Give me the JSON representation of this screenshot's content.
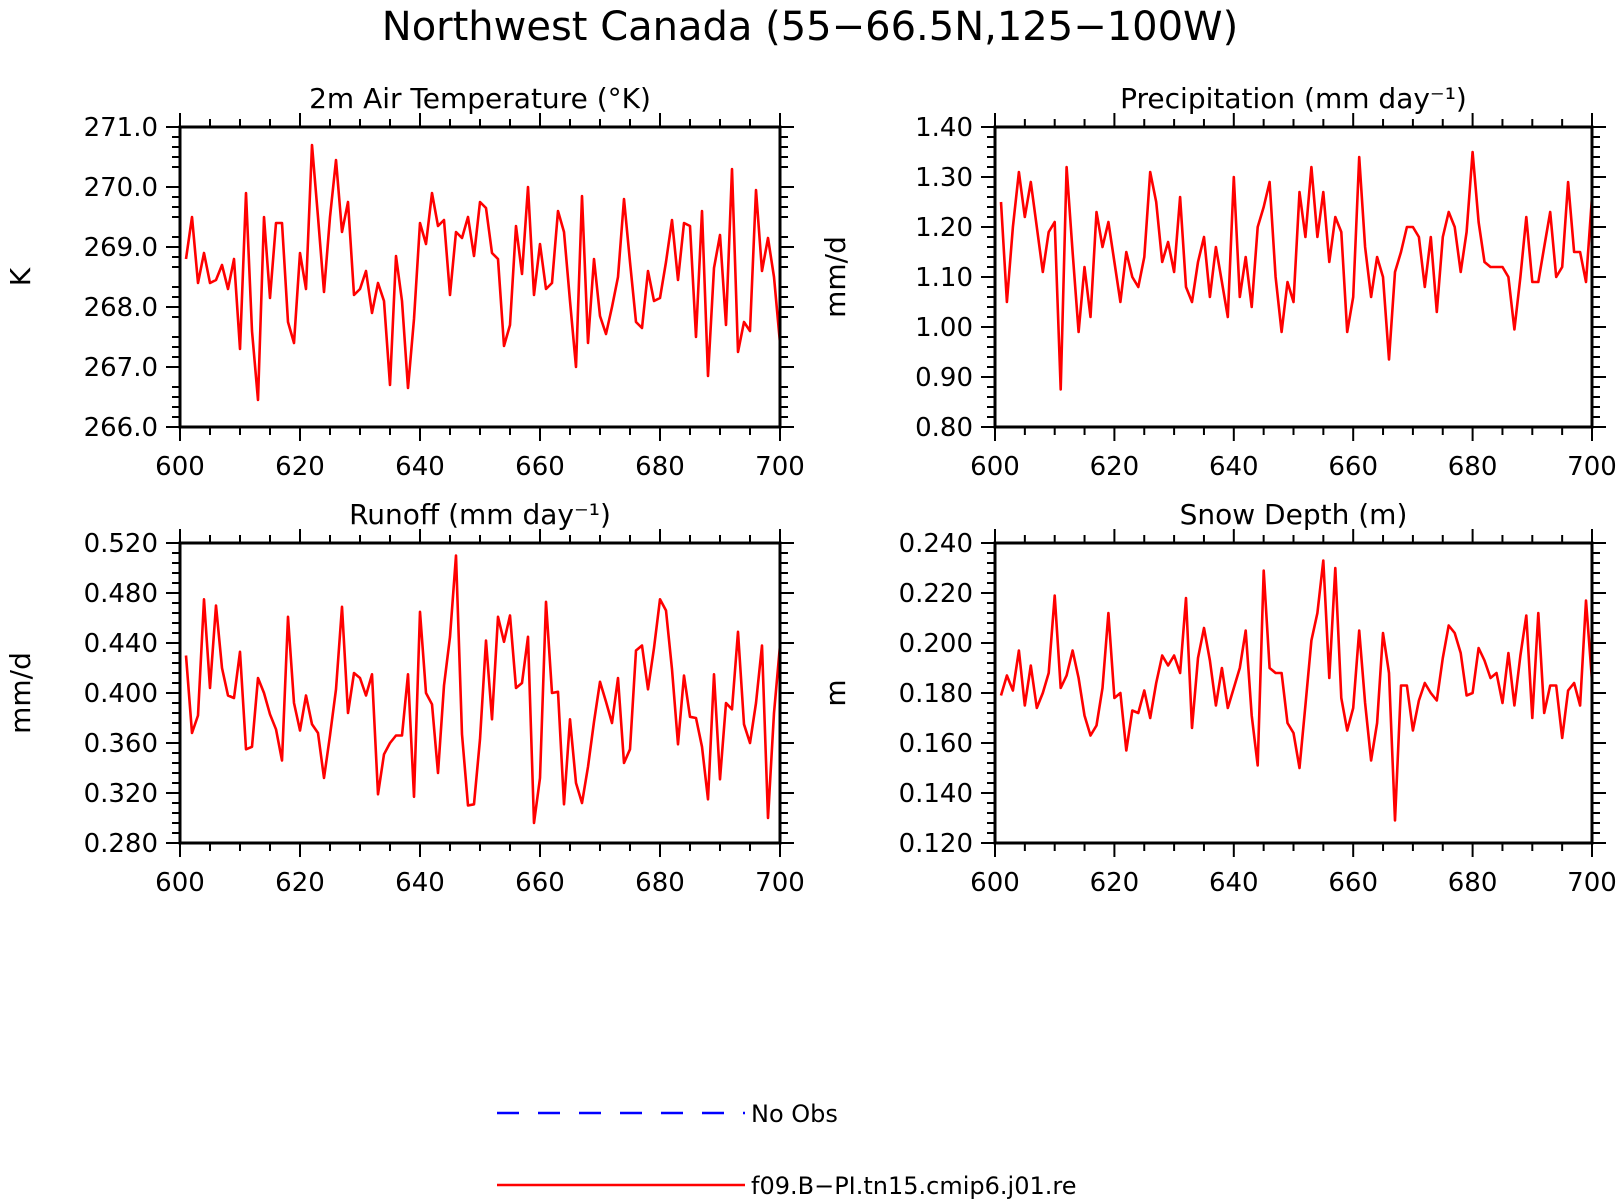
{
  "figure": {
    "title": "Northwest Canada (55−66.5N,125−100W)"
  },
  "legend": [
    {
      "label": "No Obs",
      "color": "#0000ff",
      "dashed": true
    },
    {
      "label": "f09.B−PI.tn15.cmip6.j01.re",
      "color": "#ff0000",
      "dashed": false
    }
  ],
  "chart_data": [
    {
      "type": "line",
      "title": "2m Air Temperature (°K)",
      "xlabel": "",
      "ylabel": "K",
      "xlim": [
        600,
        700
      ],
      "ylim": [
        266.0,
        271.0
      ],
      "xticks": [
        "600",
        "620",
        "640",
        "660",
        "680",
        "700"
      ],
      "yticks": [
        "266.0",
        "267.0",
        "268.0",
        "269.0",
        "270.0",
        "271.0"
      ],
      "x": [
        601,
        602,
        603,
        604,
        605,
        606,
        607,
        608,
        609,
        610,
        611,
        612,
        613,
        614,
        615,
        616,
        617,
        618,
        619,
        620,
        621,
        622,
        623,
        624,
        625,
        626,
        627,
        628,
        629,
        630,
        631,
        632,
        633,
        634,
        635,
        636,
        637,
        638,
        639,
        640,
        641,
        642,
        643,
        644,
        645,
        646,
        647,
        648,
        649,
        650,
        651,
        652,
        653,
        654,
        655,
        656,
        657,
        658,
        659,
        660,
        661,
        662,
        663,
        664,
        665,
        666,
        667,
        668,
        669,
        670,
        671,
        672,
        673,
        674,
        675,
        676,
        677,
        678,
        679,
        680,
        681,
        682,
        683,
        684,
        685,
        686,
        687,
        688,
        689,
        690,
        691,
        692,
        693,
        694,
        695,
        696,
        697,
        698,
        699,
        700
      ],
      "series": [
        {
          "color": "#ff0000",
          "values": [
            268.8,
            269.5,
            268.4,
            268.9,
            268.4,
            268.45,
            268.7,
            268.3,
            268.8,
            267.3,
            269.9,
            267.6,
            266.45,
            269.5,
            268.15,
            269.4,
            269.4,
            267.75,
            267.4,
            268.9,
            268.3,
            270.7,
            269.5,
            268.25,
            269.5,
            270.45,
            269.25,
            269.75,
            268.2,
            268.3,
            268.6,
            267.9,
            268.4,
            268.1,
            266.7,
            268.85,
            268.1,
            266.65,
            267.8,
            269.4,
            269.05,
            269.9,
            269.35,
            269.45,
            268.2,
            269.25,
            269.15,
            269.5,
            268.85,
            269.75,
            269.65,
            268.9,
            268.8,
            267.35,
            267.7,
            269.35,
            268.55,
            270.0,
            268.2,
            269.05,
            268.3,
            268.4,
            269.6,
            269.25,
            268.1,
            267.0,
            269.85,
            267.4,
            268.8,
            267.85,
            267.55,
            268.0,
            268.5,
            269.8,
            268.75,
            267.75,
            267.65,
            268.6,
            268.1,
            268.15,
            268.75,
            269.45,
            268.45,
            269.4,
            269.35,
            267.5,
            269.6,
            266.85,
            268.65,
            269.2,
            267.7,
            270.3,
            267.25,
            267.75,
            267.6,
            269.95,
            268.6,
            269.15,
            268.5,
            267.4
          ]
        }
      ]
    },
    {
      "type": "line",
      "title": "Precipitation (mm day⁻¹)",
      "xlabel": "",
      "ylabel": "mm/d",
      "xlim": [
        600,
        700
      ],
      "ylim": [
        0.8,
        1.4
      ],
      "xticks": [
        "600",
        "620",
        "640",
        "660",
        "680",
        "700"
      ],
      "yticks": [
        "0.80",
        "0.90",
        "1.00",
        "1.10",
        "1.20",
        "1.30",
        "1.40"
      ],
      "x": [
        601,
        602,
        603,
        604,
        605,
        606,
        607,
        608,
        609,
        610,
        611,
        612,
        613,
        614,
        615,
        616,
        617,
        618,
        619,
        620,
        621,
        622,
        623,
        624,
        625,
        626,
        627,
        628,
        629,
        630,
        631,
        632,
        633,
        634,
        635,
        636,
        637,
        638,
        639,
        640,
        641,
        642,
        643,
        644,
        645,
        646,
        647,
        648,
        649,
        650,
        651,
        652,
        653,
        654,
        655,
        656,
        657,
        658,
        659,
        660,
        661,
        662,
        663,
        664,
        665,
        666,
        667,
        668,
        669,
        670,
        671,
        672,
        673,
        674,
        675,
        676,
        677,
        678,
        679,
        680,
        681,
        682,
        683,
        684,
        685,
        686,
        687,
        688,
        689,
        690,
        691,
        692,
        693,
        694,
        695,
        696,
        697,
        698,
        699,
        700
      ],
      "series": [
        {
          "color": "#ff0000",
          "values": [
            1.25,
            1.05,
            1.2,
            1.31,
            1.22,
            1.29,
            1.2,
            1.11,
            1.19,
            1.21,
            0.875,
            1.32,
            1.15,
            0.99,
            1.12,
            1.02,
            1.23,
            1.16,
            1.21,
            1.13,
            1.05,
            1.15,
            1.1,
            1.08,
            1.14,
            1.31,
            1.25,
            1.13,
            1.17,
            1.11,
            1.26,
            1.08,
            1.05,
            1.13,
            1.18,
            1.06,
            1.16,
            1.09,
            1.02,
            1.3,
            1.06,
            1.14,
            1.04,
            1.2,
            1.24,
            1.29,
            1.1,
            0.99,
            1.09,
            1.05,
            1.27,
            1.18,
            1.32,
            1.18,
            1.27,
            1.13,
            1.22,
            1.19,
            0.99,
            1.06,
            1.34,
            1.16,
            1.06,
            1.14,
            1.1,
            0.935,
            1.11,
            1.15,
            1.2,
            1.2,
            1.18,
            1.08,
            1.18,
            1.03,
            1.18,
            1.23,
            1.2,
            1.11,
            1.19,
            1.35,
            1.21,
            1.13,
            1.12,
            1.12,
            1.12,
            1.1,
            0.995,
            1.1,
            1.22,
            1.09,
            1.09,
            1.16,
            1.23,
            1.1,
            1.12,
            1.29,
            1.15,
            1.15,
            1.09,
            1.26
          ]
        }
      ]
    },
    {
      "type": "line",
      "title": "Runoff (mm day⁻¹)",
      "xlabel": "",
      "ylabel": "mm/d",
      "xlim": [
        600,
        700
      ],
      "ylim": [
        0.28,
        0.52
      ],
      "xticks": [
        "600",
        "620",
        "640",
        "660",
        "680",
        "700"
      ],
      "yticks": [
        "0.280",
        "0.320",
        "0.360",
        "0.400",
        "0.440",
        "0.480",
        "0.520"
      ],
      "x": [
        601,
        602,
        603,
        604,
        605,
        606,
        607,
        608,
        609,
        610,
        611,
        612,
        613,
        614,
        615,
        616,
        617,
        618,
        619,
        620,
        621,
        622,
        623,
        624,
        625,
        626,
        627,
        628,
        629,
        630,
        631,
        632,
        633,
        634,
        635,
        636,
        637,
        638,
        639,
        640,
        641,
        642,
        643,
        644,
        645,
        646,
        647,
        648,
        649,
        650,
        651,
        652,
        653,
        654,
        655,
        656,
        657,
        658,
        659,
        660,
        661,
        662,
        663,
        664,
        665,
        666,
        667,
        668,
        669,
        670,
        671,
        672,
        673,
        674,
        675,
        676,
        677,
        678,
        679,
        680,
        681,
        682,
        683,
        684,
        685,
        686,
        687,
        688,
        689,
        690,
        691,
        692,
        693,
        694,
        695,
        696,
        697,
        698,
        699,
        700
      ],
      "series": [
        {
          "color": "#ff0000",
          "values": [
            0.43,
            0.368,
            0.382,
            0.475,
            0.404,
            0.47,
            0.42,
            0.398,
            0.396,
            0.433,
            0.355,
            0.357,
            0.412,
            0.4,
            0.383,
            0.371,
            0.346,
            0.461,
            0.392,
            0.37,
            0.398,
            0.375,
            0.368,
            0.332,
            0.366,
            0.403,
            0.469,
            0.384,
            0.416,
            0.412,
            0.398,
            0.415,
            0.319,
            0.351,
            0.36,
            0.366,
            0.366,
            0.415,
            0.317,
            0.465,
            0.4,
            0.391,
            0.336,
            0.406,
            0.445,
            0.51,
            0.367,
            0.31,
            0.311,
            0.363,
            0.442,
            0.379,
            0.461,
            0.441,
            0.462,
            0.404,
            0.408,
            0.445,
            0.296,
            0.332,
            0.473,
            0.4,
            0.401,
            0.311,
            0.379,
            0.328,
            0.312,
            0.341,
            0.377,
            0.409,
            0.393,
            0.376,
            0.412,
            0.344,
            0.355,
            0.434,
            0.438,
            0.403,
            0.436,
            0.475,
            0.466,
            0.419,
            0.359,
            0.414,
            0.381,
            0.38,
            0.357,
            0.315,
            0.415,
            0.331,
            0.392,
            0.387,
            0.449,
            0.375,
            0.36,
            0.392,
            0.438,
            0.3,
            0.384,
            0.438
          ]
        }
      ]
    },
    {
      "type": "line",
      "title": "Snow Depth (m)",
      "xlabel": "",
      "ylabel": "m",
      "xlim": [
        600,
        700
      ],
      "ylim": [
        0.12,
        0.24
      ],
      "xticks": [
        "600",
        "620",
        "640",
        "660",
        "680",
        "700"
      ],
      "yticks": [
        "0.120",
        "0.140",
        "0.160",
        "0.180",
        "0.200",
        "0.220",
        "0.240"
      ],
      "x": [
        601,
        602,
        603,
        604,
        605,
        606,
        607,
        608,
        609,
        610,
        611,
        612,
        613,
        614,
        615,
        616,
        617,
        618,
        619,
        620,
        621,
        622,
        623,
        624,
        625,
        626,
        627,
        628,
        629,
        630,
        631,
        632,
        633,
        634,
        635,
        636,
        637,
        638,
        639,
        640,
        641,
        642,
        643,
        644,
        645,
        646,
        647,
        648,
        649,
        650,
        651,
        652,
        653,
        654,
        655,
        656,
        657,
        658,
        659,
        660,
        661,
        662,
        663,
        664,
        665,
        666,
        667,
        668,
        669,
        670,
        671,
        672,
        673,
        674,
        675,
        676,
        677,
        678,
        679,
        680,
        681,
        682,
        683,
        684,
        685,
        686,
        687,
        688,
        689,
        690,
        691,
        692,
        693,
        694,
        695,
        696,
        697,
        698,
        699,
        700
      ],
      "series": [
        {
          "color": "#ff0000",
          "values": [
            0.179,
            0.187,
            0.181,
            0.197,
            0.175,
            0.191,
            0.174,
            0.18,
            0.188,
            0.219,
            0.182,
            0.187,
            0.197,
            0.186,
            0.171,
            0.163,
            0.167,
            0.182,
            0.212,
            0.178,
            0.18,
            0.157,
            0.173,
            0.172,
            0.181,
            0.17,
            0.184,
            0.195,
            0.191,
            0.195,
            0.188,
            0.218,
            0.166,
            0.194,
            0.206,
            0.193,
            0.175,
            0.19,
            0.174,
            0.182,
            0.19,
            0.205,
            0.171,
            0.151,
            0.229,
            0.19,
            0.188,
            0.188,
            0.168,
            0.164,
            0.15,
            0.175,
            0.201,
            0.212,
            0.233,
            0.186,
            0.23,
            0.178,
            0.165,
            0.174,
            0.205,
            0.176,
            0.153,
            0.168,
            0.204,
            0.188,
            0.129,
            0.183,
            0.183,
            0.165,
            0.177,
            0.184,
            0.18,
            0.177,
            0.194,
            0.207,
            0.204,
            0.196,
            0.179,
            0.18,
            0.198,
            0.193,
            0.186,
            0.188,
            0.176,
            0.196,
            0.175,
            0.195,
            0.211,
            0.17,
            0.212,
            0.172,
            0.183,
            0.183,
            0.162,
            0.181,
            0.184,
            0.175,
            0.217,
            0.185
          ]
        }
      ]
    }
  ]
}
